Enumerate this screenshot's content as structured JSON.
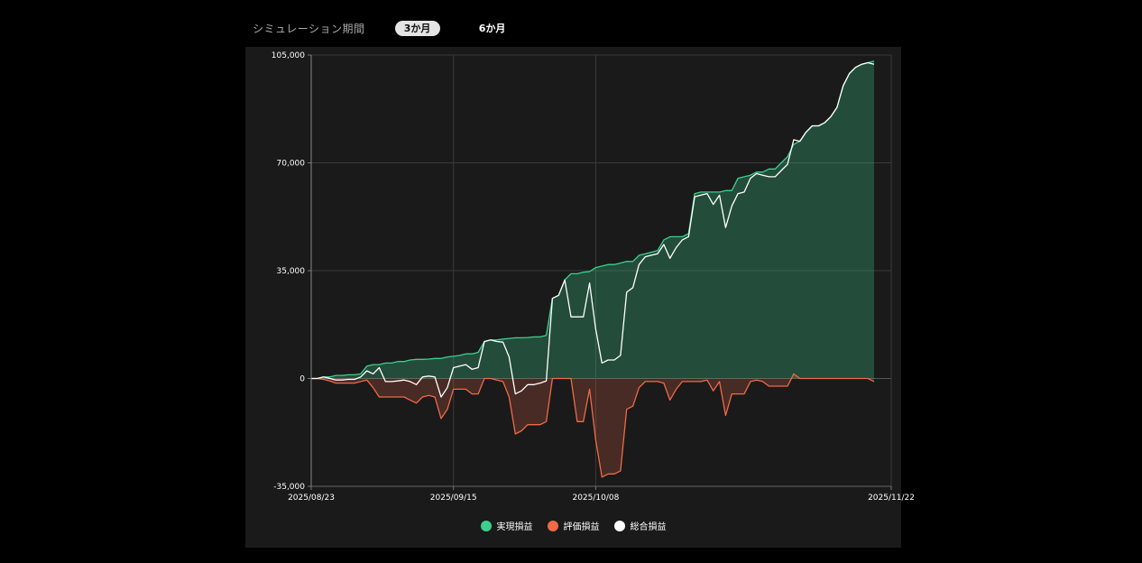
{
  "period": {
    "label": "シミュレーション期間",
    "options": [
      {
        "label": "3か月",
        "active": true
      },
      {
        "label": "6か月",
        "active": false
      }
    ]
  },
  "colors": {
    "realized": "#3ecf8e",
    "unrealized": "#ef6a47",
    "total": "#ffffff"
  },
  "chart_data": {
    "type": "area",
    "x": [
      "2025/08/23",
      "2025/08/24",
      "2025/08/25",
      "2025/08/26",
      "2025/08/27",
      "2025/08/28",
      "2025/08/29",
      "2025/08/30",
      "2025/08/31",
      "2025/09/01",
      "2025/09/02",
      "2025/09/03",
      "2025/09/04",
      "2025/09/05",
      "2025/09/06",
      "2025/09/07",
      "2025/09/08",
      "2025/09/09",
      "2025/09/10",
      "2025/09/11",
      "2025/09/12",
      "2025/09/13",
      "2025/09/14",
      "2025/09/15",
      "2025/09/16",
      "2025/09/17",
      "2025/09/18",
      "2025/09/19",
      "2025/09/20",
      "2025/09/21",
      "2025/09/22",
      "2025/09/23",
      "2025/09/24",
      "2025/09/25",
      "2025/09/26",
      "2025/09/27",
      "2025/09/28",
      "2025/09/29",
      "2025/09/30",
      "2025/10/01",
      "2025/10/02",
      "2025/10/03",
      "2025/10/04",
      "2025/10/05",
      "2025/10/06",
      "2025/10/07",
      "2025/10/08",
      "2025/10/09",
      "2025/10/10",
      "2025/10/11",
      "2025/10/12",
      "2025/10/13",
      "2025/10/14",
      "2025/10/15",
      "2025/10/16",
      "2025/10/17",
      "2025/10/18",
      "2025/10/19",
      "2025/10/20",
      "2025/10/21",
      "2025/10/22",
      "2025/10/23",
      "2025/10/24",
      "2025/10/25",
      "2025/10/26",
      "2025/10/27",
      "2025/10/28",
      "2025/10/29",
      "2025/10/30",
      "2025/10/31",
      "2025/11/01",
      "2025/11/02",
      "2025/11/03",
      "2025/11/04",
      "2025/11/05",
      "2025/11/06",
      "2025/11/07",
      "2025/11/08",
      "2025/11/09",
      "2025/11/10",
      "2025/11/11",
      "2025/11/12",
      "2025/11/13",
      "2025/11/14",
      "2025/11/15",
      "2025/11/16",
      "2025/11/17",
      "2025/11/18",
      "2025/11/19",
      "2025/11/20",
      "2025/11/21",
      "2025/11/22"
    ],
    "series": [
      {
        "name": "実現損益",
        "color": "#3ecf8e",
        "values": [
          0,
          0,
          500,
          500,
          1000,
          1000,
          1200,
          1200,
          1500,
          4000,
          4500,
          4500,
          5000,
          5000,
          5500,
          5500,
          6000,
          6200,
          6200,
          6300,
          6500,
          6500,
          7000,
          7200,
          7500,
          8000,
          8000,
          8500,
          12000,
          12500,
          12500,
          12800,
          13000,
          13200,
          13200,
          13300,
          13500,
          13500,
          14000,
          26000,
          27000,
          32000,
          34000,
          34000,
          34500,
          34700,
          36000,
          36500,
          37000,
          37000,
          37500,
          38000,
          38000,
          40000,
          40500,
          41000,
          41500,
          45000,
          46000,
          46000,
          46000,
          47000,
          60000,
          60500,
          60500,
          60500,
          60500,
          61000,
          61000,
          65000,
          65500,
          66000,
          67000,
          67000,
          68000,
          68000,
          70000,
          72000,
          76000,
          77000,
          80000,
          82000,
          82000,
          83000,
          85000,
          88000,
          95000,
          99000,
          101000,
          102000,
          102500,
          103000
        ]
      },
      {
        "name": "評価損益",
        "color": "#ef6a47",
        "values": [
          0,
          0,
          -300,
          -800,
          -1500,
          -1500,
          -1500,
          -1500,
          -1000,
          -500,
          -3000,
          -6000,
          -6000,
          -6000,
          -6000,
          -6000,
          -7000,
          -8000,
          -6000,
          -5500,
          -6000,
          -13000,
          -10000,
          -3500,
          -3500,
          -3500,
          -5000,
          -5000,
          0,
          0,
          -500,
          -1000,
          -6000,
          -18000,
          -17000,
          -15000,
          -15000,
          -15000,
          -14000,
          0,
          0,
          0,
          0,
          -14000,
          -14000,
          -3500,
          -20000,
          -32000,
          -31000,
          -31000,
          -30000,
          -10000,
          -9000,
          -3000,
          -1000,
          -1000,
          -1000,
          -1500,
          -7000,
          -3500,
          -1000,
          -1000,
          -1000,
          -1000,
          -500,
          -4000,
          -1000,
          -12000,
          -5000,
          -5000,
          -5000,
          -1000,
          -500,
          -1000,
          -2500,
          -2500,
          -2500,
          -2500,
          1500,
          0,
          0,
          0,
          0,
          0,
          0,
          0,
          0,
          0,
          0,
          0,
          0,
          -1000
        ]
      },
      {
        "name": "総合損益",
        "color": "#ffffff",
        "values": [
          0,
          0,
          500,
          0,
          -500,
          -500,
          -300,
          -300,
          500,
          2500,
          1500,
          3500,
          -1000,
          -1000,
          -800,
          -500,
          -1000,
          -2000,
          500,
          800,
          500,
          -6000,
          -3000,
          3500,
          4000,
          4500,
          3000,
          3500,
          12000,
          12500,
          12000,
          11800,
          7000,
          -5000,
          -4000,
          -2000,
          -2000,
          -1500,
          -800,
          26000,
          27000,
          32000,
          20000,
          20000,
          20000,
          31000,
          16000,
          5000,
          6000,
          6000,
          7500,
          28000,
          29500,
          37000,
          39500,
          40000,
          40500,
          43500,
          39000,
          42500,
          45000,
          46000,
          59000,
          59500,
          60000,
          56500,
          59500,
          49000,
          56000,
          60000,
          60500,
          65000,
          66500,
          66000,
          65500,
          65500,
          67500,
          69500,
          77500,
          77000,
          80000,
          82000,
          82000,
          83000,
          85000,
          88000,
          95000,
          99000,
          101000,
          102000,
          102500,
          102000
        ]
      }
    ],
    "y_ticks": [
      "105,000",
      "70,000",
      "35,000",
      "0",
      "-35,000"
    ],
    "x_ticks": [
      "2025/08/23",
      "2025/09/15",
      "2025/10/08",
      "2025/11/22"
    ],
    "ylim": [
      -35000,
      105000
    ],
    "grid": true,
    "legend": "bottom"
  },
  "legend": {
    "items": [
      {
        "label": "実現損益"
      },
      {
        "label": "評価損益"
      },
      {
        "label": "総合損益"
      }
    ]
  }
}
